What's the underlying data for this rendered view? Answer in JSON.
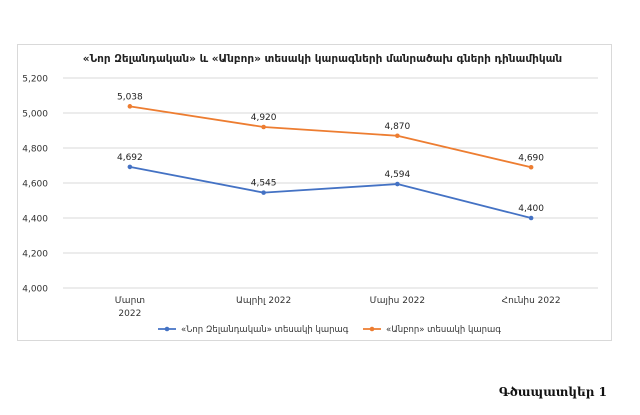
{
  "chart_data": {
    "type": "line",
    "title": "«Նոր Զելանդական» և «Անբոր» տեսակի կարագների մանրածախ գների դինամիկան",
    "xlabel": "",
    "ylabel": "",
    "categories": [
      [
        "Մարտ",
        "2022"
      ],
      [
        "Ապրիլ 2022"
      ],
      [
        "Մայիս 2022"
      ],
      [
        "Հունիս 2022"
      ]
    ],
    "ylim": [
      4000,
      5200
    ],
    "yticks": [
      4000,
      4200,
      4400,
      4600,
      4800,
      5000,
      5200
    ],
    "ytick_labels": [
      "4,000",
      "4,200",
      "4,400",
      "4,600",
      "4,800",
      "5,000",
      "5,200"
    ],
    "grid": true,
    "legend_position": "bottom",
    "series": [
      {
        "name": "«Նոր Զելանդական» տեսակի կարագ",
        "color": "#4472c4",
        "values": [
          4692,
          4545,
          4594,
          4400
        ],
        "labels": [
          "4,692",
          "4,545",
          "4,594",
          "4,400"
        ]
      },
      {
        "name": "«Անբոր» տեսակի կարագ",
        "color": "#ed7d31",
        "values": [
          5038,
          4920,
          4870,
          4690
        ],
        "labels": [
          "5,038",
          "4,920",
          "4,870",
          "4,690"
        ]
      }
    ]
  },
  "caption": "Գծապատկեր 1"
}
